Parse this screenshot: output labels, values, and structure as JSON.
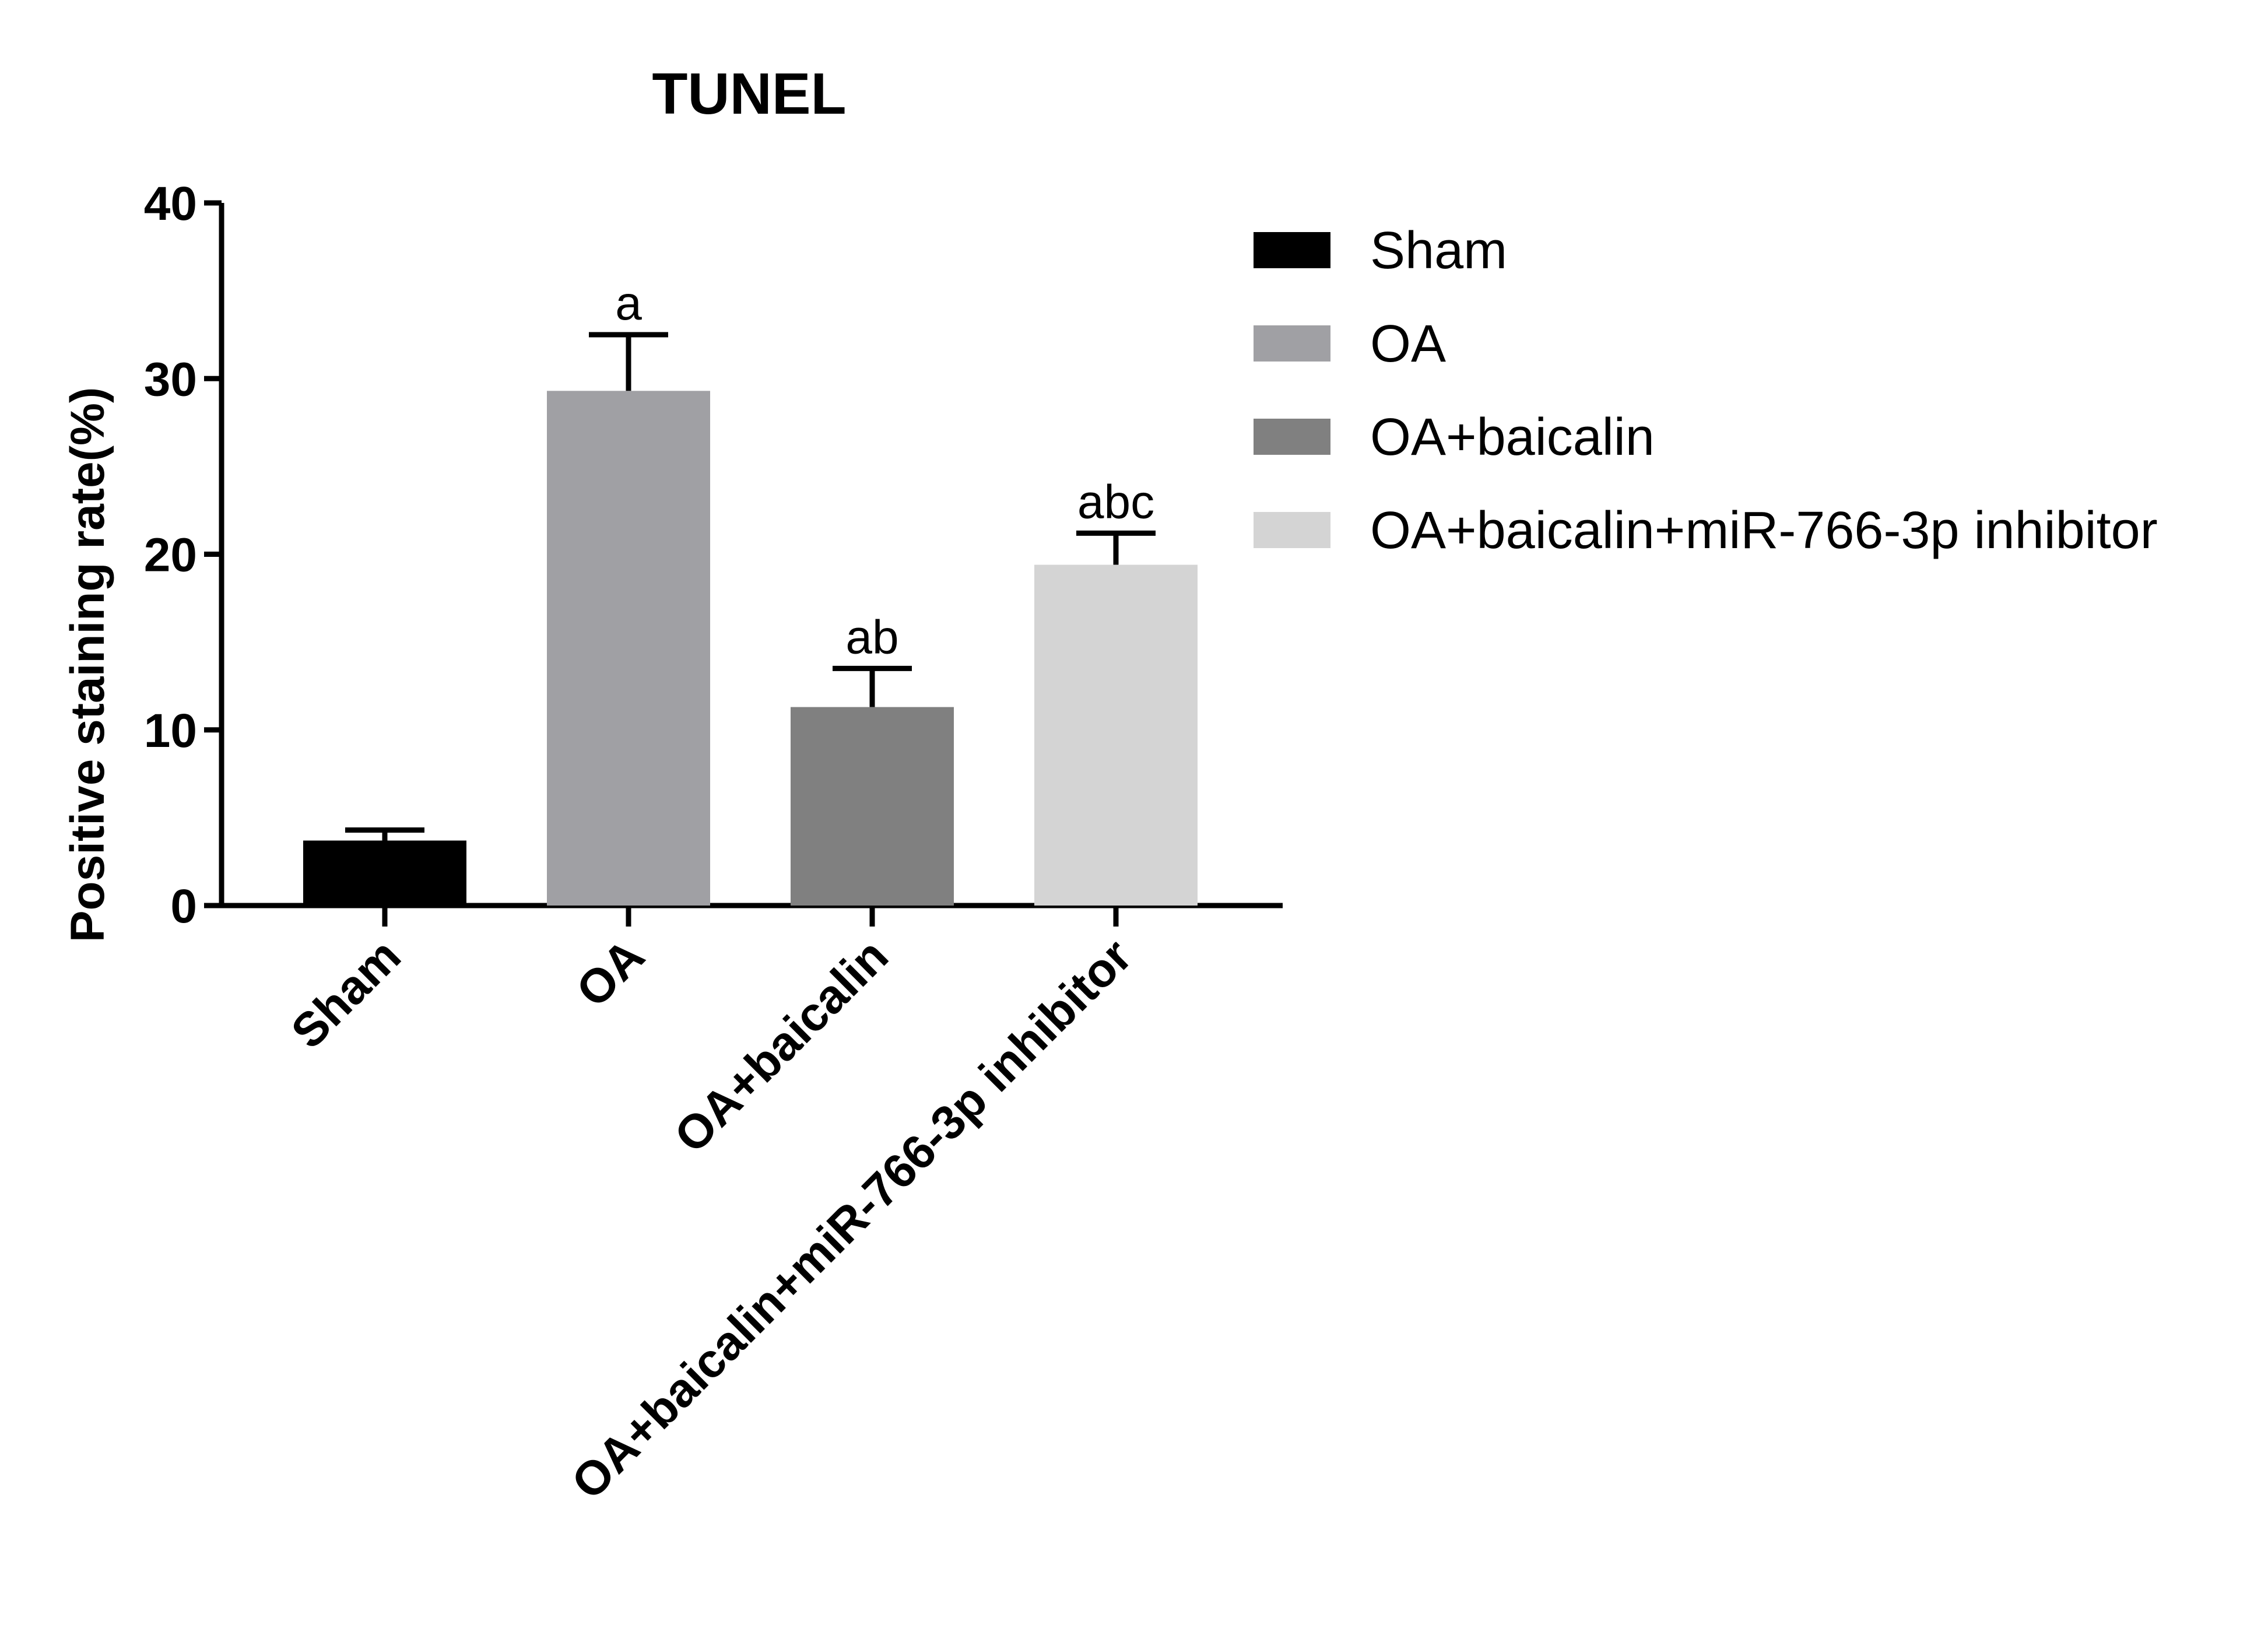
{
  "chart_data": {
    "type": "bar",
    "title": "TUNEL",
    "ylabel": "Positive staining rate(%)",
    "xlabel": "",
    "ylim": [
      0,
      40
    ],
    "yticks": [
      0,
      10,
      20,
      30,
      40
    ],
    "categories": [
      "Sham",
      "OA",
      "OA+baicalin",
      "OA+baicalin+miR-766-3p inhibitor"
    ],
    "values": [
      3.7,
      29.3,
      11.3,
      19.4
    ],
    "errors": [
      0.6,
      3.2,
      2.2,
      1.8
    ],
    "significance": [
      "",
      "a",
      "ab",
      "abc"
    ],
    "colors": [
      "#000000",
      "#a0a0a4",
      "#808080",
      "#d4d4d4"
    ],
    "legend": {
      "position": "right",
      "entries": [
        "Sham",
        "OA",
        "OA+baicalin",
        "OA+baicalin+miR-766-3p inhibitor"
      ]
    },
    "grid": false
  }
}
